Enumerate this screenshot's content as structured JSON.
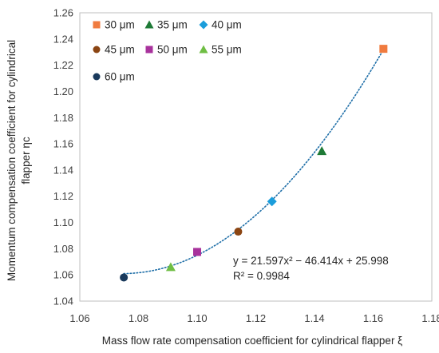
{
  "chart_data": {
    "type": "scatter",
    "xlabel": "Mass flow rate compensation coefficient for cylindrical flapper ξ",
    "ylabel": [
      "Momentum compensation coefficient for cylindrical",
      "flapper ηc"
    ],
    "xlim": [
      1.06,
      1.18
    ],
    "ylim": [
      1.04,
      1.26
    ],
    "x_ticks": [
      "1.06",
      "1.08",
      "1.10",
      "1.12",
      "1.14",
      "1.16",
      "1.18"
    ],
    "y_ticks": [
      "1.04",
      "1.06",
      "1.08",
      "1.10",
      "1.12",
      "1.14",
      "1.16",
      "1.18",
      "1.20",
      "1.22",
      "1.24",
      "1.26"
    ],
    "grid": false,
    "legend_position": "top-left",
    "series": [
      {
        "name": "30 μm",
        "marker": "square",
        "color": "#F07B3F",
        "x": 1.1635,
        "y": 1.2325
      },
      {
        "name": "35 μm",
        "marker": "triangle",
        "color": "#1E7A36",
        "x": 1.1425,
        "y": 1.1545
      },
      {
        "name": "40 μm",
        "marker": "diamond",
        "color": "#1B9DDB",
        "x": 1.1255,
        "y": 1.116
      },
      {
        "name": "45 μm",
        "marker": "circle",
        "color": "#8B4513",
        "x": 1.114,
        "y": 1.093
      },
      {
        "name": "50 μm",
        "marker": "square",
        "color": "#A8329C",
        "x": 1.1,
        "y": 1.0775
      },
      {
        "name": "55 μm",
        "marker": "triangle",
        "color": "#6FBE44",
        "x": 1.091,
        "y": 1.066
      },
      {
        "name": "60 μm",
        "marker": "circle",
        "color": "#1A3A5C",
        "x": 1.075,
        "y": 1.058
      }
    ],
    "trendline": {
      "type": "polynomial",
      "coefficients": [
        21.597,
        -46.414,
        25.998
      ],
      "x_range": [
        1.075,
        1.1635
      ],
      "color": "#1F6FA8",
      "style": "dotted",
      "equation": "y = 21.597x² − 46.414x + 25.998",
      "r_squared": "R² = 0.9984"
    }
  }
}
